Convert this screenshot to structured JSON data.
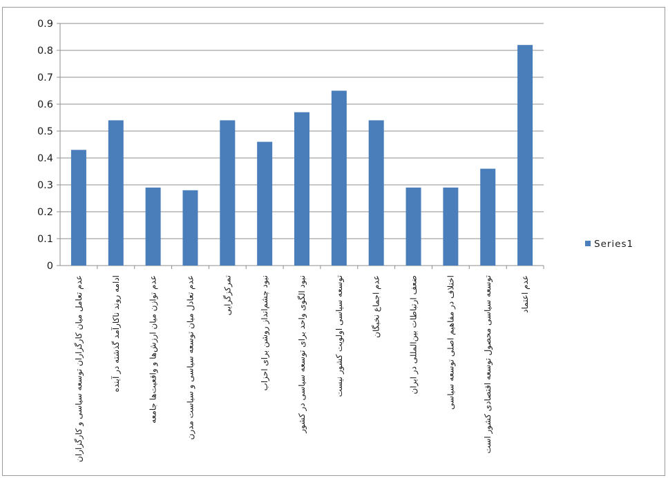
{
  "chart_data": {
    "type": "bar",
    "title": "",
    "xlabel": "",
    "ylabel": "",
    "ylim": [
      0,
      0.9
    ],
    "yticks": [
      "0",
      "0.1",
      "0.2",
      "0.3",
      "0.4",
      "0.5",
      "0.6",
      "0.7",
      "0.8",
      "0.9"
    ],
    "grid": true,
    "legend": {
      "position": "right",
      "entries": [
        "Series1"
      ]
    },
    "categories": [
      "عدم تعامل میان کارگزاران توسعه سیاسی و کارگزاران",
      "ادامه روند ناکارآمد گذشته در آینده",
      "عدم توازن میان ارزش‌ها و واقعیت‌ها جامعه",
      "عدم تعادل میان توسعه سیاسی و سیاست مدرن",
      "تمرکزگرایی",
      "نبود چشم‌انداز روشن برای احزاب",
      "نبود الگوی واحد برای توسعه سیاسی در کشور",
      "توسعه سیاسی اولویت کشور نیست",
      "عدم اجماع نخبگان",
      "ضعف ارتباطات بین‌المللی در ایران",
      "اختلاف در مفاهیم اصلی توسعه سیاسی",
      "توسعه سیاسی محصول توسعه اقتصادی کشور است",
      "عدم اعتماد"
    ],
    "series": [
      {
        "name": "Series1",
        "color": "#4a7ebb",
        "values": [
          0.43,
          0.54,
          0.29,
          0.28,
          0.54,
          0.46,
          0.57,
          0.65,
          0.54,
          0.29,
          0.29,
          0.36,
          0.82
        ]
      }
    ]
  }
}
